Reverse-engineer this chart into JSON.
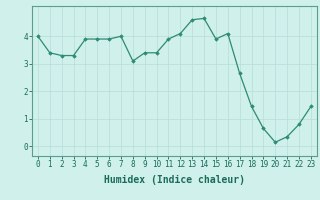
{
  "x": [
    0,
    1,
    2,
    3,
    4,
    5,
    6,
    7,
    8,
    9,
    10,
    11,
    12,
    13,
    14,
    15,
    16,
    17,
    18,
    19,
    20,
    21,
    22,
    23
  ],
  "y": [
    4.0,
    3.4,
    3.3,
    3.3,
    3.9,
    3.9,
    3.9,
    4.0,
    3.1,
    3.4,
    3.4,
    3.9,
    4.1,
    4.6,
    4.65,
    3.9,
    4.1,
    2.65,
    1.45,
    0.65,
    0.15,
    0.35,
    0.8,
    1.45
  ],
  "line_color": "#2e8b74",
  "marker": "D",
  "marker_size": 1.8,
  "linewidth": 0.9,
  "xlabel": "Humidex (Indice chaleur)",
  "xlabel_fontsize": 7,
  "yticks": [
    0,
    1,
    2,
    3,
    4
  ],
  "xticks": [
    0,
    1,
    2,
    3,
    4,
    5,
    6,
    7,
    8,
    9,
    10,
    11,
    12,
    13,
    14,
    15,
    16,
    17,
    18,
    19,
    20,
    21,
    22,
    23
  ],
  "ylim": [
    -0.35,
    5.1
  ],
  "xlim": [
    -0.5,
    23.5
  ],
  "bg_color": "#cff0eb",
  "grid_color": "#b8ddd8",
  "tick_fontsize": 5.5,
  "fig_bg_color": "#cff0eb",
  "spine_color": "#5a9e90",
  "label_color": "#1a6b5a"
}
